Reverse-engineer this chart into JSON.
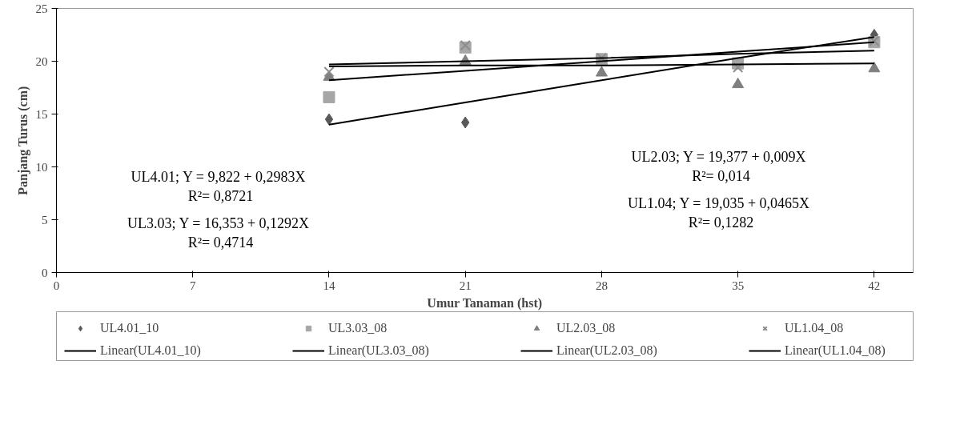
{
  "chart_data": {
    "type": "scatter",
    "xlabel": "Umur Tanaman (hst)",
    "ylabel": "Panjang Turus (cm)",
    "x": [
      14,
      21,
      28,
      35,
      42
    ],
    "series": [
      {
        "name": "UL4.01_10",
        "color": "#595959",
        "marker": "diamond",
        "values": [
          14.5,
          14.2,
          null,
          null,
          22.5
        ]
      },
      {
        "name": "UL3.03_08",
        "color": "#a6a6a6",
        "marker": "square",
        "values": [
          16.6,
          21.3,
          20.2,
          19.8,
          21.8
        ]
      },
      {
        "name": "UL2.03_08",
        "color": "#7f7f7f",
        "marker": "triangle",
        "values": [
          18.5,
          20.0,
          18.9,
          17.8,
          19.3
        ]
      },
      {
        "name": "UL1.04_08",
        "color": "#8c8c8c",
        "marker": "cross",
        "values": [
          19.0,
          21.5,
          20.3,
          19.4,
          21.9
        ]
      },
      {
        "name": "Linear(UL4.01_10)",
        "type": "line",
        "color": "#000000",
        "values": [
          14.0,
          16.1,
          18.2,
          20.3,
          22.3
        ]
      },
      {
        "name": "Linear(UL3.03_08)",
        "type": "line",
        "color": "#000000",
        "values": [
          18.2,
          19.1,
          20.0,
          20.9,
          21.8
        ]
      },
      {
        "name": "Linear(UL2.03_08)",
        "type": "line",
        "color": "#000000",
        "values": [
          19.5,
          19.6,
          19.6,
          19.7,
          19.8
        ]
      },
      {
        "name": "Linear(UL1.04_08)",
        "type": "line",
        "color": "#000000",
        "values": [
          19.7,
          20.0,
          20.3,
          20.7,
          21.0
        ]
      }
    ],
    "annotations": [
      "UL4.01; Y =  9,822 + 0,2983X\nR²= 0,8721",
      "UL3.03; Y =  16,353 + 0,1292X\nR²= 0,4714",
      "UL2.03; Y =  19,377 + 0,009X\nR²= 0,014",
      "UL1.04; Y =  19,035 + 0,0465X\nR²= 0,1282"
    ],
    "xlim": [
      0,
      44
    ],
    "xticks": [
      0,
      7,
      14,
      21,
      28,
      35,
      42
    ],
    "ylim": [
      0,
      25
    ],
    "yticks": [
      0,
      5,
      10,
      15,
      20,
      25
    ],
    "grid": false,
    "legend": "bottom"
  }
}
